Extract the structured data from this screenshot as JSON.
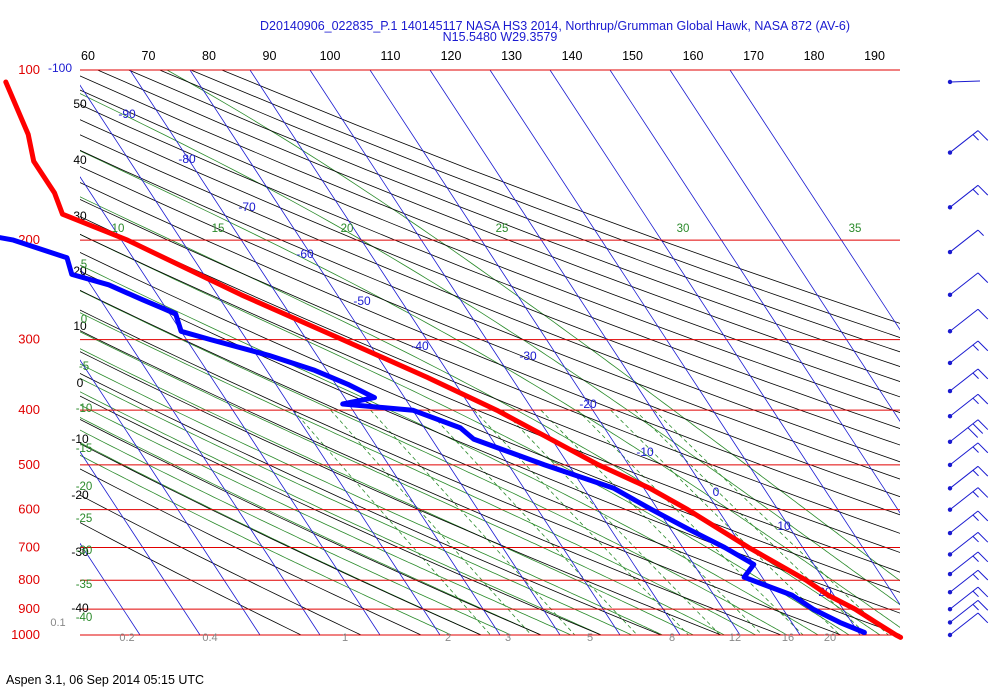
{
  "chart_data": {
    "type": "line",
    "title_line1": "D20140906_022835_P.1 140145117 NASA HS3 2014, Northrup/Grumman Global Hawk, NASA 872 (AV-6)",
    "title_line2": "N15.5480 W29.3579",
    "footer": "Aspen 3.1, 06 Sep 2014  05:15 UTC",
    "pressure_levels": [
      "100",
      "200",
      "300",
      "400",
      "500",
      "600",
      "700",
      "800",
      "900",
      "1000"
    ],
    "top_axis_labels": [
      "60",
      "70",
      "80",
      "90",
      "100",
      "110",
      "120",
      "130",
      "140",
      "150",
      "160",
      "170",
      "180",
      "190"
    ],
    "isotherm_labels": [
      "-100",
      "-90",
      "-80",
      "-70",
      "-60",
      "-50",
      "-40",
      "-30",
      "-20",
      "-10",
      "0",
      "10",
      "20"
    ],
    "left_temp_labels": [
      "50",
      "40",
      "30",
      "20",
      "10",
      "0",
      "-10",
      "-20",
      "-30",
      "-40"
    ],
    "left_wetbulb_labels": [
      "5",
      "0",
      "-5",
      "-10",
      "-15",
      "-20",
      "-25",
      "-30",
      "-35",
      "-40"
    ],
    "wetbulb_top_labels": [
      "10",
      "15",
      "20",
      "25",
      "30",
      "35"
    ],
    "mixing_labels": [
      "0.1",
      "0.2",
      "0.4",
      "1",
      "2",
      "3",
      "5",
      "8",
      "12",
      "16",
      "20"
    ],
    "temperature": {
      "name": "Temperature",
      "color": "#ff0000",
      "points": [
        [
          105,
          -62
        ],
        [
          130,
          -64
        ],
        [
          145,
          -66
        ],
        [
          165,
          -66
        ],
        [
          180,
          -67
        ],
        [
          200,
          -59
        ],
        [
          250,
          -46
        ],
        [
          300,
          -34
        ],
        [
          350,
          -24
        ],
        [
          400,
          -16
        ],
        [
          500,
          -5
        ],
        [
          550,
          1
        ],
        [
          600,
          5
        ],
        [
          700,
          11
        ],
        [
          800,
          17
        ],
        [
          850,
          19
        ],
        [
          900,
          22
        ],
        [
          950,
          24
        ],
        [
          1000,
          26
        ],
        [
          1010,
          26.5
        ]
      ]
    },
    "dewpoint": {
      "name": "Dewpoint",
      "color": "#0000ff",
      "points": [
        [
          180,
          -100
        ],
        [
          190,
          -88
        ],
        [
          200,
          -78
        ],
        [
          215,
          -71
        ],
        [
          230,
          -72
        ],
        [
          240,
          -67
        ],
        [
          255,
          -63
        ],
        [
          270,
          -59
        ],
        [
          290,
          -60
        ],
        [
          300,
          -56
        ],
        [
          320,
          -48
        ],
        [
          340,
          -42
        ],
        [
          360,
          -38
        ],
        [
          380,
          -35
        ],
        [
          390,
          -41
        ],
        [
          400,
          -30
        ],
        [
          430,
          -24
        ],
        [
          450,
          -23
        ],
        [
          500,
          -14
        ],
        [
          550,
          -5
        ],
        [
          600,
          -1
        ],
        [
          650,
          3
        ],
        [
          700,
          7
        ],
        [
          750,
          10
        ],
        [
          790,
          7
        ],
        [
          850,
          13
        ],
        [
          900,
          15
        ],
        [
          950,
          18
        ],
        [
          990,
          21
        ]
      ]
    },
    "winds": [
      {
        "pressure": 105,
        "barb": "calm"
      },
      {
        "pressure": 140,
        "barb": "kt15"
      },
      {
        "pressure": 175,
        "barb": "kt15"
      },
      {
        "pressure": 210,
        "barb": "kt5"
      },
      {
        "pressure": 250,
        "barb": "kt10"
      },
      {
        "pressure": 290,
        "barb": "kt10"
      },
      {
        "pressure": 330,
        "barb": "kt15"
      },
      {
        "pressure": 370,
        "barb": "kt15"
      },
      {
        "pressure": 410,
        "barb": "kt15"
      },
      {
        "pressure": 455,
        "barb": "kt20"
      },
      {
        "pressure": 500,
        "barb": "kt15"
      },
      {
        "pressure": 550,
        "barb": "kt15"
      },
      {
        "pressure": 600,
        "barb": "kt15"
      },
      {
        "pressure": 660,
        "barb": "kt15"
      },
      {
        "pressure": 720,
        "barb": "kt15"
      },
      {
        "pressure": 780,
        "barb": "kt15"
      },
      {
        "pressure": 840,
        "barb": "kt15"
      },
      {
        "pressure": 900,
        "barb": "kt15"
      },
      {
        "pressure": 950,
        "barb": "kt15"
      },
      {
        "pressure": 1000,
        "barb": "kt10"
      }
    ],
    "colors": {
      "isobar": "#e00000",
      "isotherm": "#1a1ad0",
      "dry_adiabat": "#000000",
      "moist_adiabat": "#2a8a2a",
      "mixing_ratio": "#888888"
    }
  }
}
